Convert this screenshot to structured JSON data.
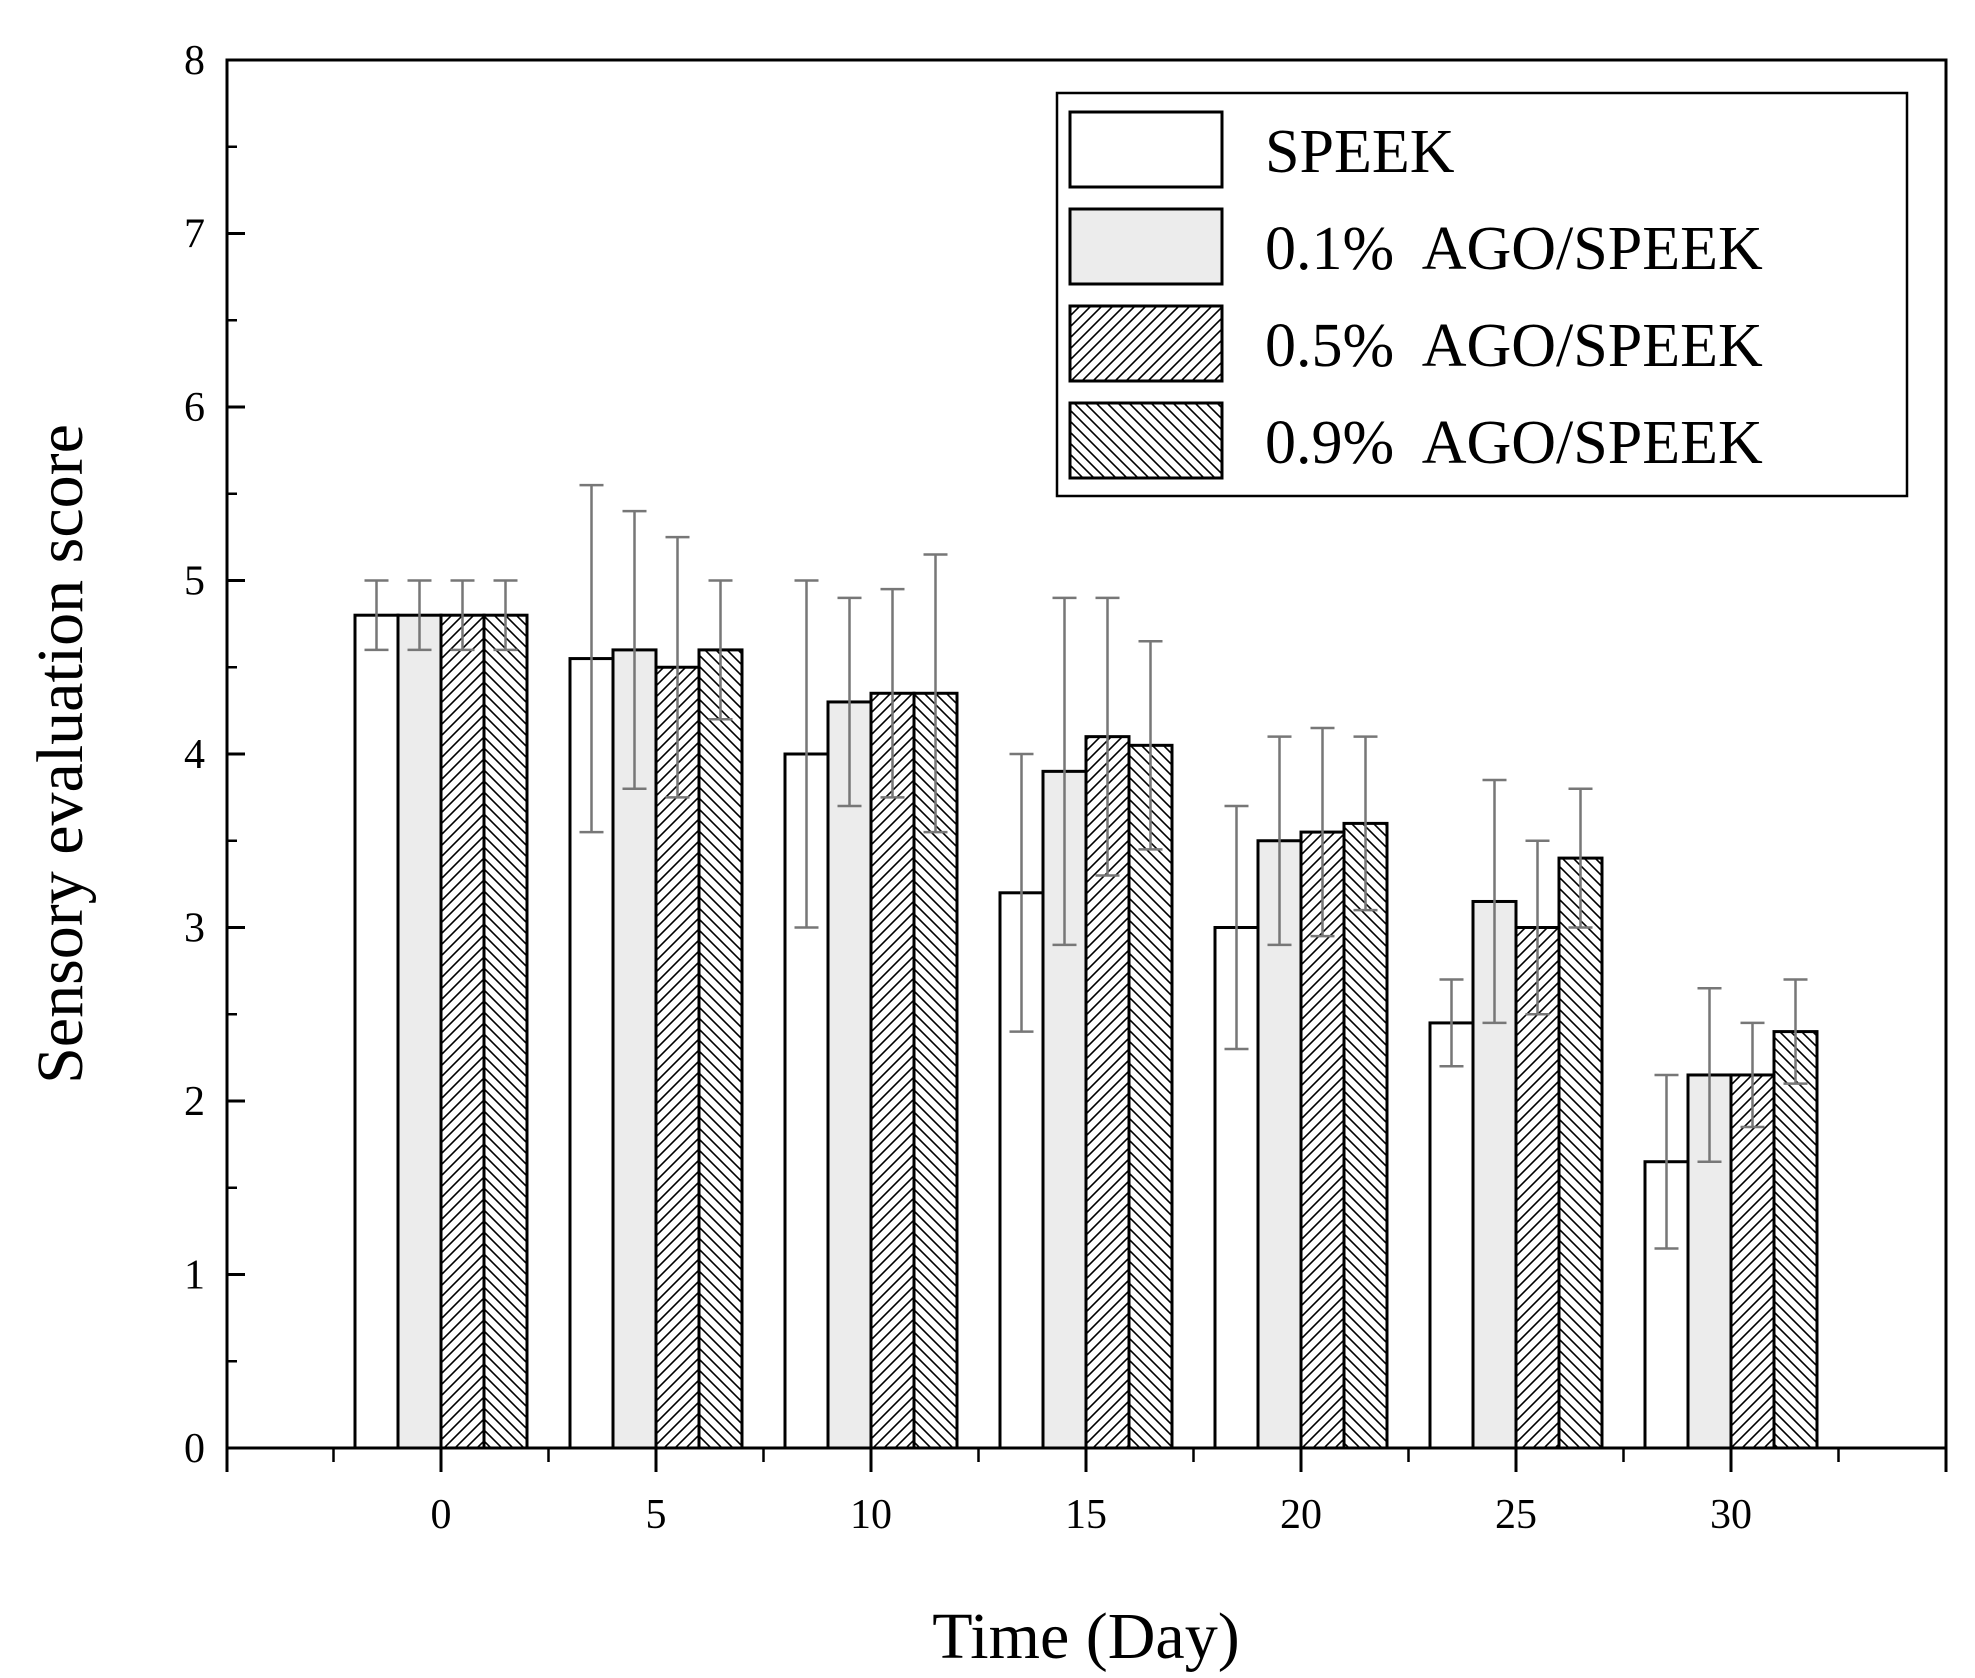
{
  "chart_data": {
    "type": "bar",
    "title": "",
    "xlabel": "Time (Day)",
    "ylabel": "Sensory evaluation score",
    "categories": [
      "0",
      "5",
      "10",
      "15",
      "20",
      "25",
      "30"
    ],
    "ylim": [
      0,
      8
    ],
    "yticks": [
      "0",
      "1",
      "2",
      "3",
      "4",
      "5",
      "6",
      "7",
      "8"
    ],
    "legend_position": "top-right",
    "series": [
      {
        "name": "SPEEK",
        "pattern": "none",
        "fill": "#ffffff",
        "values": [
          4.8,
          4.55,
          4.0,
          3.2,
          3.0,
          2.45,
          1.65
        ],
        "errors": [
          0.2,
          1.0,
          1.0,
          0.8,
          0.7,
          0.25,
          0.5
        ]
      },
      {
        "name": "0.1%  AGO/SPEEK",
        "pattern": "none",
        "fill": "#ececec",
        "values": [
          4.8,
          4.6,
          4.3,
          3.9,
          3.5,
          3.15,
          2.15
        ],
        "errors": [
          0.2,
          0.8,
          0.6,
          1.0,
          0.6,
          0.7,
          0.5
        ]
      },
      {
        "name": "0.5%  AGO/SPEEK",
        "pattern": "forward-hatch",
        "fill": "#ffffff",
        "values": [
          4.8,
          4.5,
          4.35,
          4.1,
          3.55,
          3.0,
          2.15
        ],
        "errors": [
          0.2,
          0.75,
          0.6,
          0.8,
          0.6,
          0.5,
          0.3
        ]
      },
      {
        "name": "0.9%  AGO/SPEEK",
        "pattern": "back-hatch",
        "fill": "#ffffff",
        "values": [
          4.8,
          4.6,
          4.35,
          4.05,
          3.6,
          3.4,
          2.4
        ],
        "errors": [
          0.2,
          0.4,
          0.8,
          0.6,
          0.5,
          0.4,
          0.3
        ]
      }
    ],
    "colors": {
      "stroke": "#000000",
      "error_bar": "#777777",
      "fill_light_gray": "#ececec"
    }
  }
}
